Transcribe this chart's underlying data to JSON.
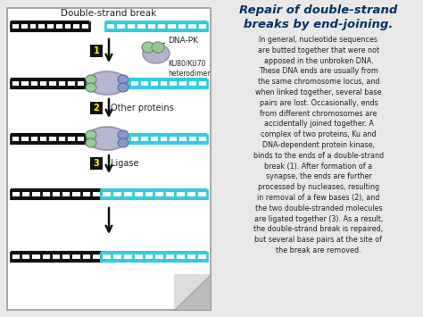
{
  "title": "Repair of double-strand\nbreaks by end-joining.",
  "title_color": "#003366",
  "background_color": "#e8e8e8",
  "left_panel_bg": "#ffffff",
  "left_panel_border": "#999999",
  "dsb_label": "Double-strand break",
  "step_annotations": [
    "Other proteins",
    "Ligase"
  ],
  "dna_pk_label": "DNA-PK",
  "heterodimer_label": "KU80/KU70\nheterodimer",
  "right_text": "In general, nucleotide sequences\nare butted together that were not\napposed in the unbroken DNA.\nThese DNA ends are usually from\nthe same chromosome locus, and\nwhen linked together, several base\npairs are lost. Occasionally, ends\nfrom different chromosomes are\naccidentally joined together. A\ncomplex of two proteins, Ku and\nDNA-dependent protein kinase,\nbinds to the ends of a double-strand\nbreak (1). After formation of a\nsynapse, the ends are further\nprocessed by nucleases, resulting\nin removal of a few bases (2), and\nthe two double-stranded molecules\nare ligated together (3). As a result,\nthe double-strand break is repaired,\nbut several base pairs at the site of\nthe break are removed.",
  "dna_black_color": "#111111",
  "dna_cyan_color": "#33ccdd",
  "protein_green_color": "#99cc99",
  "protein_purple_color": "#aaaacc",
  "protein_blue_color": "#8899cc",
  "step_box_color": "#111111",
  "step_text_color": "#ffff00",
  "arrow_color": "#111111",
  "curl_color1": "#bbbbbb",
  "curl_color2": "#dddddd"
}
